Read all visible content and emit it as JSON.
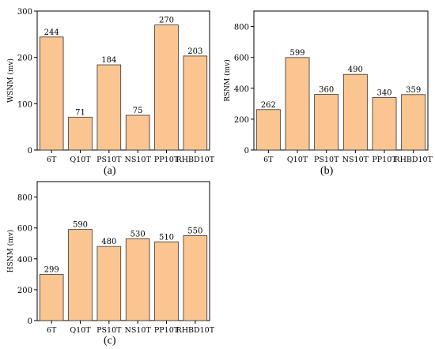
{
  "bar_style": {
    "fill": "#FAC590",
    "stroke": "#333333"
  },
  "chart_data": [
    {
      "type": "bar",
      "categories": [
        "6T",
        "Q10T",
        "PS10T",
        "NS10T",
        "PP10T",
        "RHBD10T"
      ],
      "values": [
        244,
        71,
        184,
        75,
        270,
        203
      ],
      "data_labels": [
        "244",
        "71",
        "184",
        "75",
        "270",
        "203"
      ],
      "ylabel": "WSNM (mv)",
      "ylim": [
        0,
        300
      ],
      "yticks": [
        0,
        100,
        200,
        300
      ],
      "caption": "(a)",
      "grid": false
    },
    {
      "type": "bar",
      "categories": [
        "6T",
        "Q10T",
        "PS10T",
        "NS10T",
        "PP10T",
        "RHBD10T"
      ],
      "values": [
        262,
        599,
        360,
        490,
        340,
        359
      ],
      "data_labels": [
        "262",
        "599",
        "360",
        "490",
        "340",
        "359"
      ],
      "ylabel": "RSNM (mv)",
      "ylim": [
        0,
        900
      ],
      "yticks": [
        0,
        200,
        400,
        600,
        800
      ],
      "caption": "(b)",
      "grid": false
    },
    {
      "type": "bar",
      "categories": [
        "6T",
        "Q10T",
        "PS10T",
        "NS10T",
        "PP10T",
        "RHBD10T"
      ],
      "values": [
        299,
        590,
        480,
        530,
        510,
        550
      ],
      "data_labels": [
        "299",
        "590",
        "480",
        "530",
        "510",
        "550"
      ],
      "ylabel": "HSNM (mv)",
      "ylim": [
        0,
        900
      ],
      "yticks": [
        0,
        200,
        400,
        600,
        800
      ],
      "caption": "(c)",
      "grid": false
    }
  ]
}
